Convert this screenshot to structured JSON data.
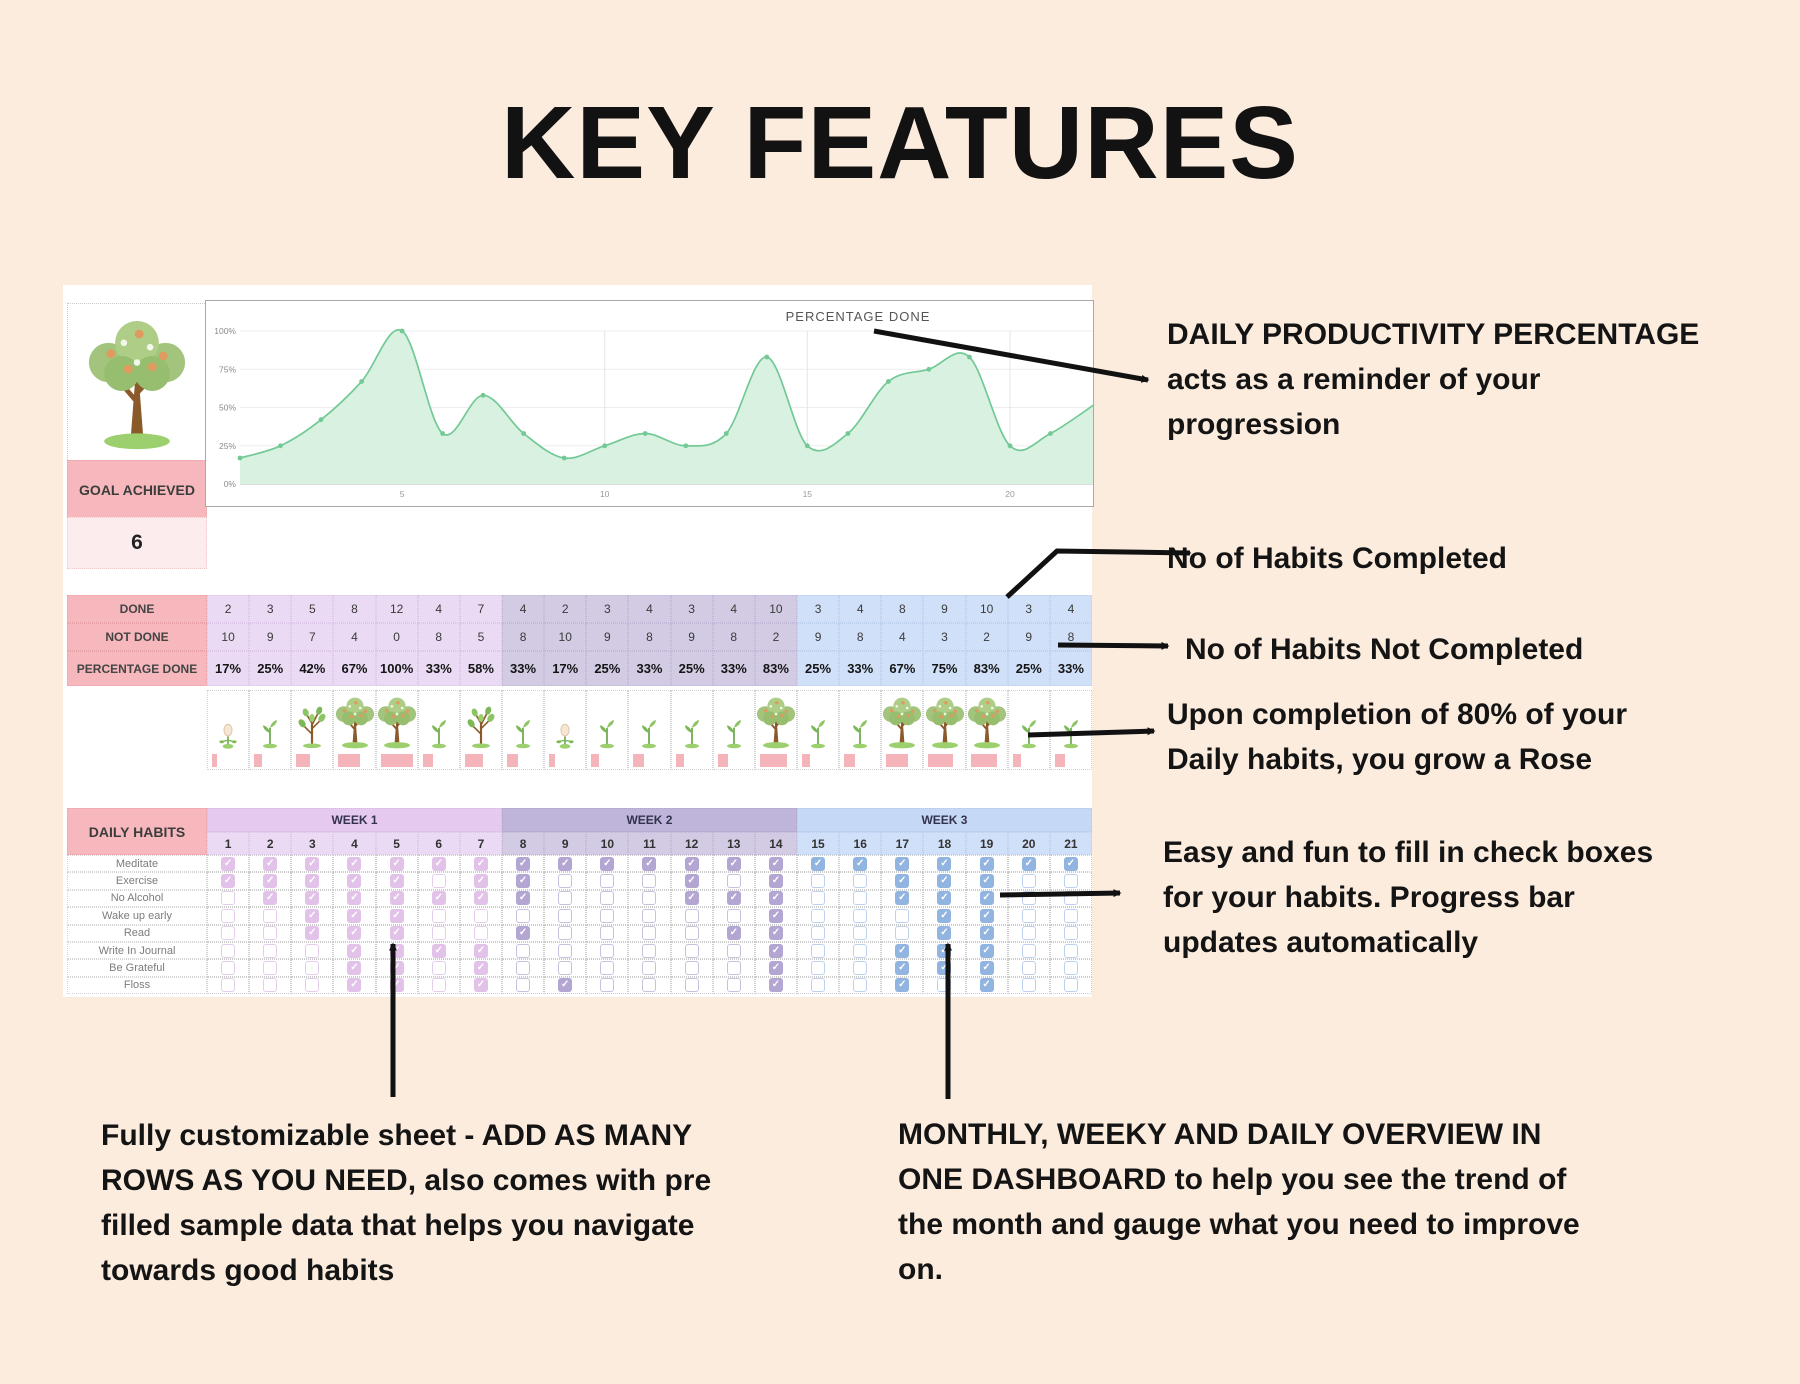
{
  "page": {
    "title": "KEY FEATURES",
    "background": "#fcecde"
  },
  "chart_data": {
    "type": "area",
    "title": "PERCENTAGE DONE",
    "x": [
      1,
      2,
      3,
      4,
      5,
      6,
      7,
      8,
      9,
      10,
      11,
      12,
      13,
      14,
      15,
      16,
      17,
      18,
      19,
      20,
      21
    ],
    "values": [
      17,
      25,
      42,
      67,
      100,
      33,
      58,
      33,
      17,
      25,
      33,
      25,
      33,
      83,
      25,
      33,
      67,
      75,
      83,
      25,
      33
    ],
    "xticks": [
      5,
      10,
      15,
      20
    ],
    "yticks": [
      "0%",
      "25%",
      "50%",
      "75%",
      "100%"
    ],
    "ylim": [
      0,
      100
    ],
    "grid": "on",
    "line_color": "#72c995",
    "fill_color": "#d9f1e0"
  },
  "sheet": {
    "goal": {
      "label": "GOAL ACHIEVED",
      "value": "6"
    },
    "summary": {
      "rows": [
        {
          "label": "DONE",
          "values": [
            "2",
            "3",
            "5",
            "8",
            "12",
            "4",
            "7",
            "4",
            "2",
            "3",
            "4",
            "3",
            "4",
            "10",
            "3",
            "4",
            "8",
            "9",
            "10",
            "3",
            "4"
          ]
        },
        {
          "label": "NOT DONE",
          "values": [
            "10",
            "9",
            "7",
            "4",
            "0",
            "8",
            "5",
            "8",
            "10",
            "9",
            "8",
            "9",
            "8",
            "2",
            "9",
            "8",
            "4",
            "3",
            "2",
            "9",
            "8"
          ]
        },
        {
          "label": "PERCENTAGE DONE",
          "values": [
            "17%",
            "25%",
            "42%",
            "67%",
            "100%",
            "33%",
            "58%",
            "33%",
            "17%",
            "25%",
            "33%",
            "25%",
            "33%",
            "83%",
            "25%",
            "33%",
            "67%",
            "75%",
            "83%",
            "25%",
            "33%"
          ]
        }
      ]
    },
    "growth": {
      "stages": [
        "seed",
        "sprout",
        "plant",
        "tree",
        "tree",
        "sprout",
        "plant",
        "sprout",
        "seed",
        "sprout",
        "sprout",
        "sprout",
        "sprout",
        "tree",
        "sprout",
        "sprout",
        "tree",
        "tree",
        "tree",
        "sprout",
        "sprout"
      ],
      "progress": [
        17,
        25,
        42,
        67,
        100,
        33,
        58,
        33,
        17,
        25,
        33,
        25,
        33,
        83,
        25,
        33,
        67,
        75,
        83,
        25,
        33
      ]
    },
    "habits": {
      "header": "DAILY HABITS",
      "weeks": [
        {
          "label": "WEEK 1"
        },
        {
          "label": "WEEK 2"
        },
        {
          "label": "WEEK 3"
        }
      ],
      "days": [
        1,
        2,
        3,
        4,
        5,
        6,
        7,
        8,
        9,
        10,
        11,
        12,
        13,
        14,
        15,
        16,
        17,
        18,
        19,
        20,
        21
      ],
      "rows": [
        {
          "name": "Meditate",
          "checks": [
            1,
            1,
            1,
            1,
            1,
            1,
            1,
            1,
            1,
            1,
            1,
            1,
            1,
            1,
            1,
            1,
            1,
            1,
            1,
            1,
            1
          ]
        },
        {
          "name": "Exercise",
          "checks": [
            1,
            1,
            1,
            1,
            1,
            0,
            1,
            1,
            0,
            0,
            0,
            1,
            0,
            1,
            0,
            0,
            1,
            1,
            1,
            0,
            0
          ]
        },
        {
          "name": "No Alcohol",
          "checks": [
            0,
            1,
            1,
            1,
            1,
            1,
            1,
            1,
            0,
            0,
            0,
            1,
            1,
            1,
            0,
            0,
            1,
            1,
            1,
            0,
            0
          ]
        },
        {
          "name": "Wake up early",
          "checks": [
            0,
            0,
            1,
            1,
            1,
            0,
            0,
            0,
            0,
            0,
            0,
            0,
            0,
            1,
            0,
            0,
            0,
            1,
            1,
            0,
            0
          ]
        },
        {
          "name": "Read",
          "checks": [
            0,
            0,
            1,
            1,
            1,
            0,
            0,
            1,
            0,
            0,
            0,
            0,
            1,
            1,
            0,
            0,
            0,
            1,
            1,
            0,
            0
          ]
        },
        {
          "name": "Write In Journal",
          "checks": [
            0,
            0,
            0,
            1,
            1,
            1,
            1,
            0,
            0,
            0,
            0,
            0,
            0,
            1,
            0,
            0,
            1,
            1,
            1,
            0,
            0
          ]
        },
        {
          "name": "Be Grateful",
          "checks": [
            0,
            0,
            0,
            1,
            1,
            0,
            1,
            0,
            0,
            0,
            0,
            0,
            0,
            1,
            0,
            0,
            1,
            1,
            1,
            0,
            0
          ]
        },
        {
          "name": "Floss",
          "checks": [
            0,
            0,
            0,
            1,
            1,
            0,
            1,
            0,
            1,
            0,
            0,
            0,
            0,
            1,
            0,
            0,
            1,
            0,
            1,
            0,
            0
          ]
        }
      ]
    },
    "colors": {
      "header_pink": "#f6b8bc",
      "week1": "#eadaf3",
      "week2": "#d2cbe3",
      "week3": "#d0e0f8",
      "progress_bar": "#f5b4ba"
    }
  },
  "annotations": {
    "a1": {
      "text": "DAILY PRODUCTIVITY PERCENTAGE\n acts as a reminder of your\nprogression"
    },
    "a2": {
      "text": "No of Habits Completed"
    },
    "a3": {
      "text": "No of Habits Not Completed"
    },
    "a4": {
      "text": "Upon completion of 80% of your\nDaily habits, you grow a Rose"
    },
    "a5": {
      "text": "Easy and fun to fill in check boxes\nfor your habits. Progress bar\nupdates automatically"
    },
    "b1": {
      "text": "Fully customizable sheet - ADD AS MANY\nROWS AS YOU NEED, also comes with pre\nfilled sample data that helps you navigate\ntowards good habits"
    },
    "b2": {
      "text": "MONTHLY, WEEKY AND DAILY OVERVIEW  IN\nONE DASHBOARD to help you see the trend of\nthe month and gauge  what you need to improve\non."
    }
  }
}
